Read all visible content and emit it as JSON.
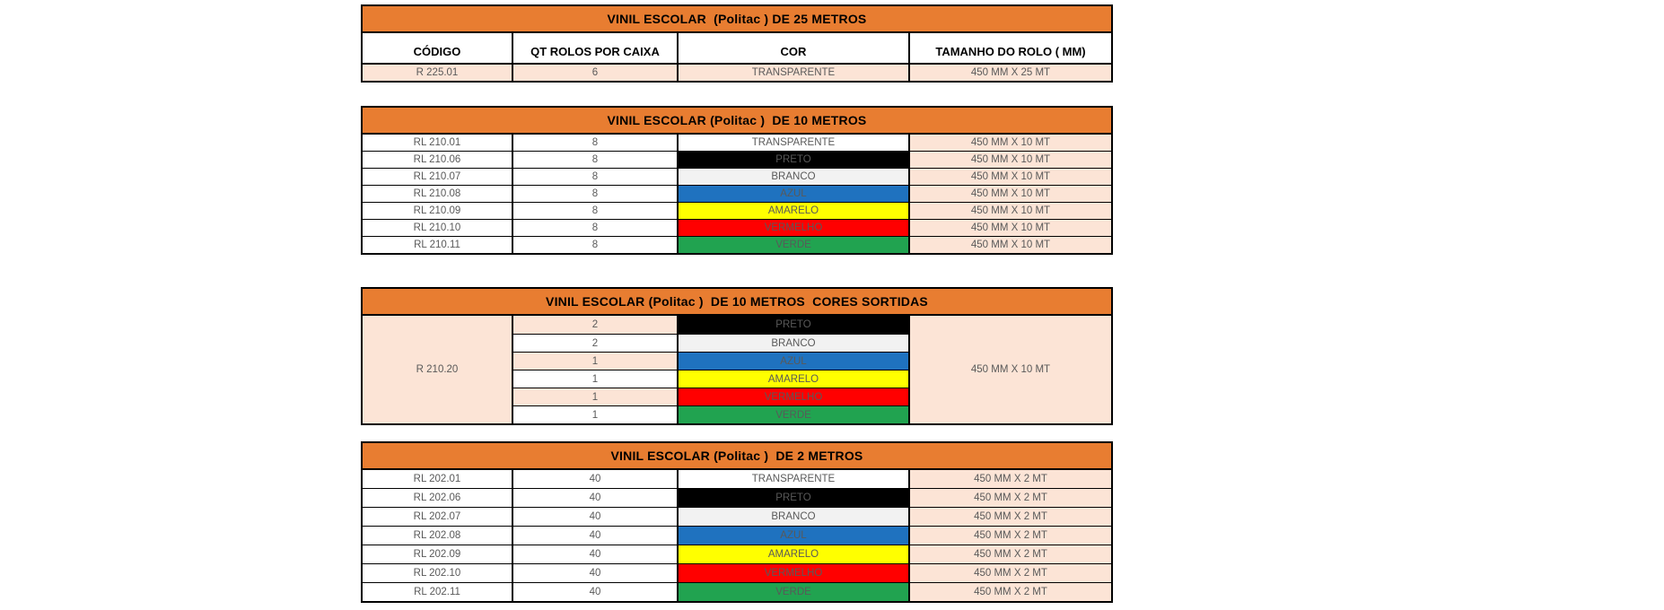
{
  "page": {
    "background": "#ffffff"
  },
  "colors": {
    "title_bg": "#e87d31",
    "peach": "#fce4d6",
    "border": "#000000",
    "data_text": "#595959",
    "title_text": "#000000",
    "swatches": {
      "TRANSPARENTE": "#ffffff",
      "PRETO": "#000000",
      "BRANCO": "#f2f2f2",
      "AZUL": "#1f72bf",
      "AMARELO": "#ffff00",
      "VERMELHO": "#ff0000",
      "VERDE": "#21a350"
    }
  },
  "tables": [
    {
      "name": "vinil-escolar-25-metros",
      "title": "VINIL ESCOLAR  (Politac ) DE 25 METROS",
      "headers": [
        "CÓDIGO",
        "QT ROLOS POR CAIXA",
        "COR",
        "TAMANHO DO ROLO ( MM)"
      ],
      "rows": [
        {
          "codigo": "R 225.01",
          "qt": "6",
          "cor": "TRANSPARENTE",
          "tamanho": "450 MM X 25 MT",
          "base_bg": "peach",
          "cor_bg": "peach"
        }
      ]
    },
    {
      "name": "vinil-escolar-10-metros",
      "title": "VINIL ESCOLAR (Politac )  DE 10 METROS",
      "rows": [
        {
          "codigo": "RL 210.01",
          "qt": "8",
          "cor": "TRANSPARENTE",
          "tamanho": "450 MM X 10 MT"
        },
        {
          "codigo": "RL 210.06",
          "qt": "8",
          "cor": "PRETO",
          "tamanho": "450 MM X 10 MT"
        },
        {
          "codigo": "RL 210.07",
          "qt": "8",
          "cor": "BRANCO",
          "tamanho": "450 MM X 10 MT"
        },
        {
          "codigo": "RL 210.08",
          "qt": "8",
          "cor": "AZUL",
          "tamanho": "450 MM X 10 MT"
        },
        {
          "codigo": "RL 210.09",
          "qt": "8",
          "cor": "AMARELO",
          "tamanho": "450 MM X 10 MT"
        },
        {
          "codigo": "RL 210.10",
          "qt": "8",
          "cor": "VERMELHO",
          "tamanho": "450 MM X 10 MT"
        },
        {
          "codigo": "RL 210.11",
          "qt": "8",
          "cor": "VERDE",
          "tamanho": "450 MM X 10 MT"
        }
      ]
    },
    {
      "name": "vinil-escolar-10-metros-cores-sortidas",
      "title": "VINIL ESCOLAR (Politac )  DE 10 METROS  CORES SORTIDAS",
      "merged": {
        "codigo": "R 210.20",
        "tamanho": "450 MM X 10 MT"
      },
      "rows": [
        {
          "qt": "2",
          "cor": "PRETO",
          "qt_bg": "peach"
        },
        {
          "qt": "2",
          "cor": "BRANCO",
          "qt_bg": "white"
        },
        {
          "qt": "1",
          "cor": "AZUL",
          "qt_bg": "peach"
        },
        {
          "qt": "1",
          "cor": "AMARELO",
          "qt_bg": "white"
        },
        {
          "qt": "1",
          "cor": "VERMELHO",
          "qt_bg": "peach"
        },
        {
          "qt": "1",
          "cor": "VERDE",
          "qt_bg": "white"
        }
      ]
    },
    {
      "name": "vinil-escolar-2-metros",
      "title": "VINIL ESCOLAR (Politac )  DE 2 METROS",
      "rows": [
        {
          "codigo": "RL 202.01",
          "qt": "40",
          "cor": "TRANSPARENTE",
          "tamanho": "450 MM X 2 MT"
        },
        {
          "codigo": "RL 202.06",
          "qt": "40",
          "cor": "PRETO",
          "tamanho": "450 MM X 2 MT"
        },
        {
          "codigo": "RL 202.07",
          "qt": "40",
          "cor": "BRANCO",
          "tamanho": "450 MM X 2 MT"
        },
        {
          "codigo": "RL 202.08",
          "qt": "40",
          "cor": "AZUL",
          "tamanho": "450 MM X 2 MT"
        },
        {
          "codigo": "RL 202.09",
          "qt": "40",
          "cor": "AMARELO",
          "tamanho": "450 MM X 2 MT"
        },
        {
          "codigo": "RL 202.10",
          "qt": "40",
          "cor": "VERMELHO",
          "tamanho": "450 MM X 2 MT"
        },
        {
          "codigo": "RL 202.11",
          "qt": "40",
          "cor": "VERDE",
          "tamanho": "450 MM X 2 MT"
        }
      ]
    }
  ]
}
